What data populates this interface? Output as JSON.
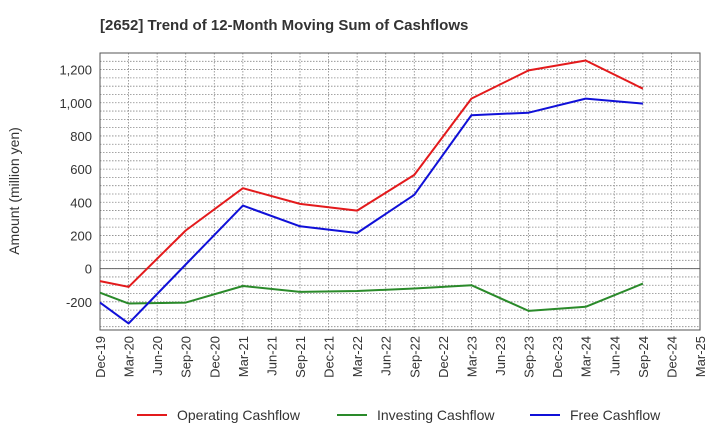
{
  "chart_data": {
    "type": "line",
    "title": "[2652]  Trend of 12-Month Moving Sum of Cashflows",
    "ylabel": "Amount (million yen)",
    "xlabel": "",
    "ylim": [
      -370,
      1300
    ],
    "yticks": [
      -200,
      0,
      200,
      400,
      600,
      800,
      1000,
      1200
    ],
    "ytick_labels": [
      "-200",
      "0",
      "200",
      "400",
      "600",
      "800",
      "1,000",
      "1,200"
    ],
    "categories": [
      "Dec-19",
      "Mar-20",
      "Jun-20",
      "Sep-20",
      "Dec-20",
      "Mar-21",
      "Jun-21",
      "Sep-21",
      "Dec-21",
      "Mar-22",
      "Jun-22",
      "Sep-22",
      "Dec-22",
      "Mar-23",
      "Jun-23",
      "Sep-23",
      "Dec-23",
      "Mar-24",
      "Jun-24",
      "Sep-24",
      "Dec-24",
      "Mar-25"
    ],
    "grid": true,
    "legend_position": "bottom",
    "series": [
      {
        "name": "Operating Cashflow",
        "color": "#e31a1c",
        "values": [
          -75,
          -110,
          null,
          230,
          null,
          485,
          null,
          390,
          null,
          350,
          null,
          565,
          null,
          1025,
          null,
          1195,
          null,
          1255,
          null,
          1085,
          null,
          null
        ]
      },
      {
        "name": "Investing Cashflow",
        "color": "#2a8a2a",
        "values": [
          -145,
          -210,
          null,
          -205,
          null,
          -105,
          null,
          -140,
          null,
          -135,
          null,
          -120,
          null,
          -100,
          null,
          -255,
          null,
          -230,
          null,
          -90,
          null,
          null
        ]
      },
      {
        "name": "Free Cashflow",
        "color": "#1010d8",
        "values": [
          -205,
          -330,
          null,
          25,
          null,
          380,
          null,
          255,
          null,
          215,
          null,
          445,
          null,
          925,
          null,
          940,
          null,
          1025,
          null,
          995,
          null,
          null
        ]
      }
    ]
  }
}
